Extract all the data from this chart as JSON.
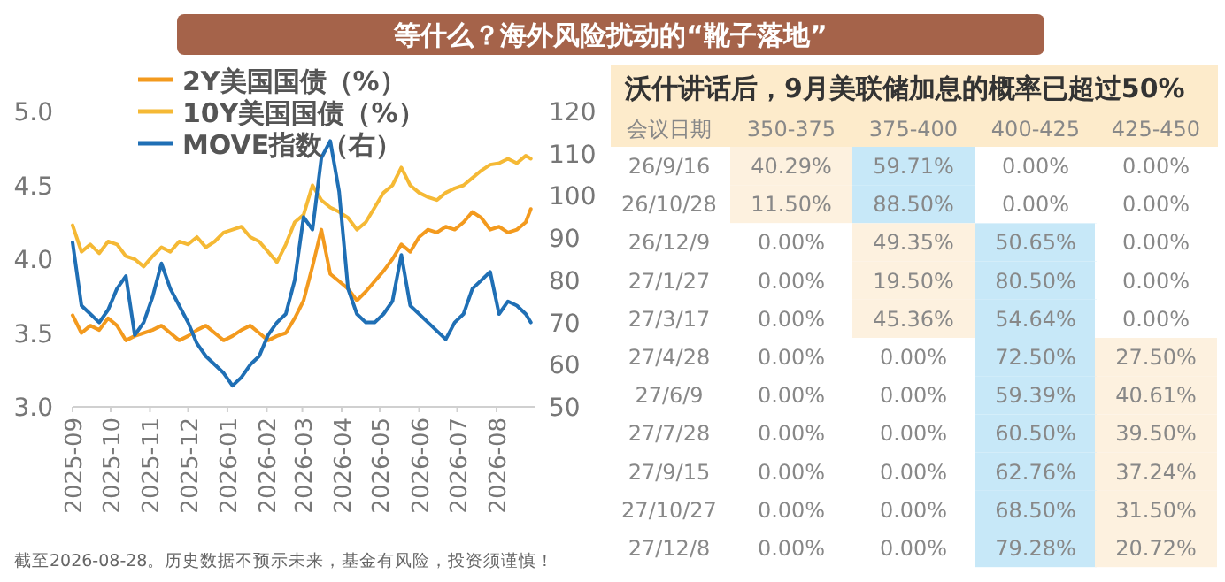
{
  "chart_data": [
    {
      "type": "line",
      "title": "等什么？海外风险扰动的“靴子落地”",
      "legend": "top left",
      "x": [
        "2025-09-01",
        "2025-09-08",
        "2025-09-15",
        "2025-09-22",
        "2025-09-29",
        "2025-10-06",
        "2025-10-13",
        "2025-10-20",
        "2025-10-27",
        "2025-11-03",
        "2025-11-10",
        "2025-11-17",
        "2025-11-24",
        "2025-12-01",
        "2025-12-08",
        "2025-12-15",
        "2025-12-22",
        "2025-12-29",
        "2026-01-05",
        "2026-01-12",
        "2026-01-19",
        "2026-01-26",
        "2026-02-02",
        "2026-02-09",
        "2026-02-16",
        "2026-02-23",
        "2026-03-02",
        "2026-03-09",
        "2026-03-16",
        "2026-03-23",
        "2026-03-30",
        "2026-04-06",
        "2026-04-13",
        "2026-04-20",
        "2026-04-27",
        "2026-05-04",
        "2026-05-11",
        "2026-05-18",
        "2026-05-25",
        "2026-06-01",
        "2026-06-08",
        "2026-06-15",
        "2026-06-22",
        "2026-06-29",
        "2026-07-06",
        "2026-07-13",
        "2026-07-20",
        "2026-07-27",
        "2026-08-03",
        "2026-08-10",
        "2026-08-17",
        "2026-08-24",
        "2026-08-28"
      ],
      "series": [
        {
          "name": "2Y美国国债（%）",
          "color": "#f39a1e",
          "values": [
            3.62,
            3.5,
            3.55,
            3.52,
            3.6,
            3.55,
            3.45,
            3.48,
            3.5,
            3.52,
            3.55,
            3.5,
            3.45,
            3.48,
            3.52,
            3.55,
            3.5,
            3.45,
            3.48,
            3.52,
            3.55,
            3.5,
            3.45,
            3.48,
            3.5,
            3.6,
            3.72,
            3.95,
            4.2,
            3.9,
            3.85,
            3.8,
            3.72,
            3.78,
            3.85,
            3.92,
            4.0,
            4.1,
            4.05,
            4.15,
            4.2,
            4.18,
            4.22,
            4.2,
            4.25,
            4.32,
            4.28,
            4.2,
            4.22,
            4.18,
            4.2,
            4.25,
            4.34
          ]
        },
        {
          "name": "10Y美国国债（%）",
          "color": "#f5b935",
          "values": [
            4.23,
            4.05,
            4.1,
            4.04,
            4.12,
            4.1,
            4.02,
            4.0,
            3.95,
            4.02,
            4.08,
            4.05,
            4.12,
            4.1,
            4.15,
            4.08,
            4.12,
            4.18,
            4.2,
            4.22,
            4.15,
            4.12,
            4.05,
            3.98,
            4.1,
            4.25,
            4.3,
            4.5,
            4.4,
            4.35,
            4.32,
            4.28,
            4.2,
            4.25,
            4.35,
            4.45,
            4.5,
            4.62,
            4.5,
            4.45,
            4.42,
            4.4,
            4.45,
            4.48,
            4.5,
            4.55,
            4.6,
            4.64,
            4.65,
            4.68,
            4.65,
            4.7,
            4.68
          ]
        },
        {
          "name": "MOVE指数（右）",
          "color": "#1f6fb5",
          "axis": "y2",
          "values": [
            89,
            74,
            72,
            70,
            73,
            78,
            81,
            67,
            70,
            76,
            84,
            78,
            74,
            70,
            65,
            62,
            60,
            58,
            55,
            57,
            60,
            62,
            67,
            70,
            72,
            80,
            95,
            92,
            109,
            113,
            101,
            78,
            72,
            70,
            70,
            72,
            75,
            86,
            74,
            72,
            70,
            68,
            66,
            70,
            72,
            78,
            80,
            82,
            72,
            75,
            74,
            72,
            70
          ]
        }
      ],
      "xlim": [
        "2025-09-01",
        "2026-08-31"
      ],
      "xticks": [
        "2025-09",
        "2025-10",
        "2025-11",
        "2025-12",
        "2026-01",
        "2026-02",
        "2026-03",
        "2026-04",
        "2026-05",
        "2026-06",
        "2026-07",
        "2026-08"
      ],
      "ylim": [
        3,
        5
      ],
      "yticks": [
        {
          "value": 3,
          "label": "3.0"
        },
        {
          "value": 3.5,
          "label": "3.5"
        },
        {
          "value": 4,
          "label": "4.0"
        },
        {
          "value": 4.5,
          "label": "4.5"
        },
        {
          "value": 5,
          "label": "5.0"
        }
      ],
      "y2lim": [
        50,
        120
      ],
      "y2ticks": [
        50,
        60,
        70,
        80,
        90,
        100,
        110,
        120
      ],
      "annotations": [
        "截至2026-08-28。历史数据不预示未来，基金有风险，投资须谨慎！"
      ]
    },
    {
      "type": "heatmap",
      "title": "沃什讲话后，9月美联储加息的概率已超过50%",
      "ylabel": "会议日期",
      "categories": [
        "350-375",
        "375-400",
        "400-425",
        "425-450"
      ],
      "y_categories": [
        "26/9/16",
        "26/10/28",
        "26/12/9",
        "27/1/27",
        "27/3/17",
        "27/4/28",
        "27/6/9",
        "27/7/28",
        "27/9/15",
        "27/10/27",
        "27/12/8"
      ],
      "cells": [
        [
          40.29,
          59.71,
          0,
          0
        ],
        [
          11.5,
          88.5,
          0,
          0
        ],
        [
          0,
          49.35,
          50.65,
          0
        ],
        [
          0,
          19.5,
          80.5,
          0
        ],
        [
          0,
          45.36,
          54.64,
          0
        ],
        [
          0,
          0,
          72.5,
          27.5
        ],
        [
          0,
          0,
          59.39,
          40.61
        ],
        [
          0,
          0,
          60.5,
          39.5
        ],
        [
          0,
          0,
          62.76,
          37.24
        ],
        [
          0,
          0,
          68.5,
          31.5
        ],
        [
          0,
          0,
          79.28,
          20.72
        ]
      ],
      "cell_labels": [
        [
          "40.29%",
          "59.71%",
          "0.00%",
          "0.00%"
        ],
        [
          "11.50%",
          "88.50%",
          "0.00%",
          "0.00%"
        ],
        [
          "0.00%",
          "49.35%",
          "50.65%",
          "0.00%"
        ],
        [
          "0.00%",
          "19.50%",
          "80.50%",
          "0.00%"
        ],
        [
          "0.00%",
          "45.36%",
          "54.64%",
          "0.00%"
        ],
        [
          "0.00%",
          "0.00%",
          "72.50%",
          "27.50%"
        ],
        [
          "0.00%",
          "0.00%",
          "59.39%",
          "40.61%"
        ],
        [
          "0.00%",
          "0.00%",
          "60.50%",
          "39.50%"
        ],
        [
          "0.00%",
          "0.00%",
          "62.76%",
          "37.24%"
        ],
        [
          "0.00%",
          "0.00%",
          "68.50%",
          "31.50%"
        ],
        [
          "0.00%",
          "0.00%",
          "79.28%",
          "20.72%"
        ]
      ]
    }
  ]
}
